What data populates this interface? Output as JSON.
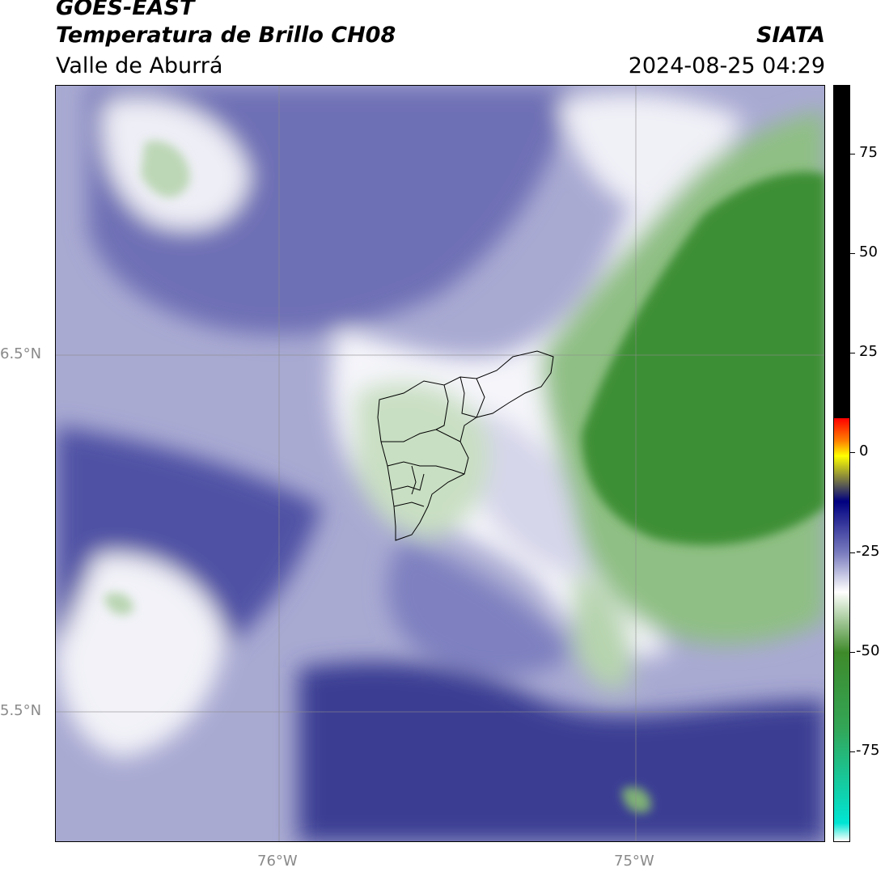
{
  "header": {
    "satellite": "GOES-EAST",
    "product": "Temperatura de Brillo CH08",
    "region": "Valle de Aburrá",
    "organization": "SIATA",
    "datetime": "2024-08-25 04:29"
  },
  "map": {
    "lat_labels": [
      "6.5°N",
      "5.5°N"
    ],
    "lon_labels": [
      "76°W",
      "75°W"
    ],
    "colors": {
      "dark_blue": "#3a3c93",
      "mid_blue": "#6e6fb5",
      "light_blue": "#a9aad2",
      "pale_blue": "#d6d6ea",
      "white": "#ffffff",
      "pale_green": "#c9dfc3",
      "mid_green": "#8fbf84",
      "dark_green": "#3d8f34"
    }
  },
  "colorbar": {
    "ticks": [
      "75",
      "50",
      "25",
      "0",
      "-25",
      "-50",
      "-75"
    ],
    "stops": [
      {
        "color": "#ffffff"
      },
      {
        "color": "#00e5d4"
      },
      {
        "color": "#33a657"
      },
      {
        "color": "#3e8a2a"
      },
      {
        "color": "#cfe3c8"
      },
      {
        "color": "#ffffff"
      },
      {
        "color": "#7d7fc0"
      },
      {
        "color": "#000080"
      },
      {
        "color": "#ffff00"
      },
      {
        "color": "#ff8000"
      },
      {
        "color": "#ff0000"
      },
      {
        "color": "#000000"
      }
    ]
  }
}
